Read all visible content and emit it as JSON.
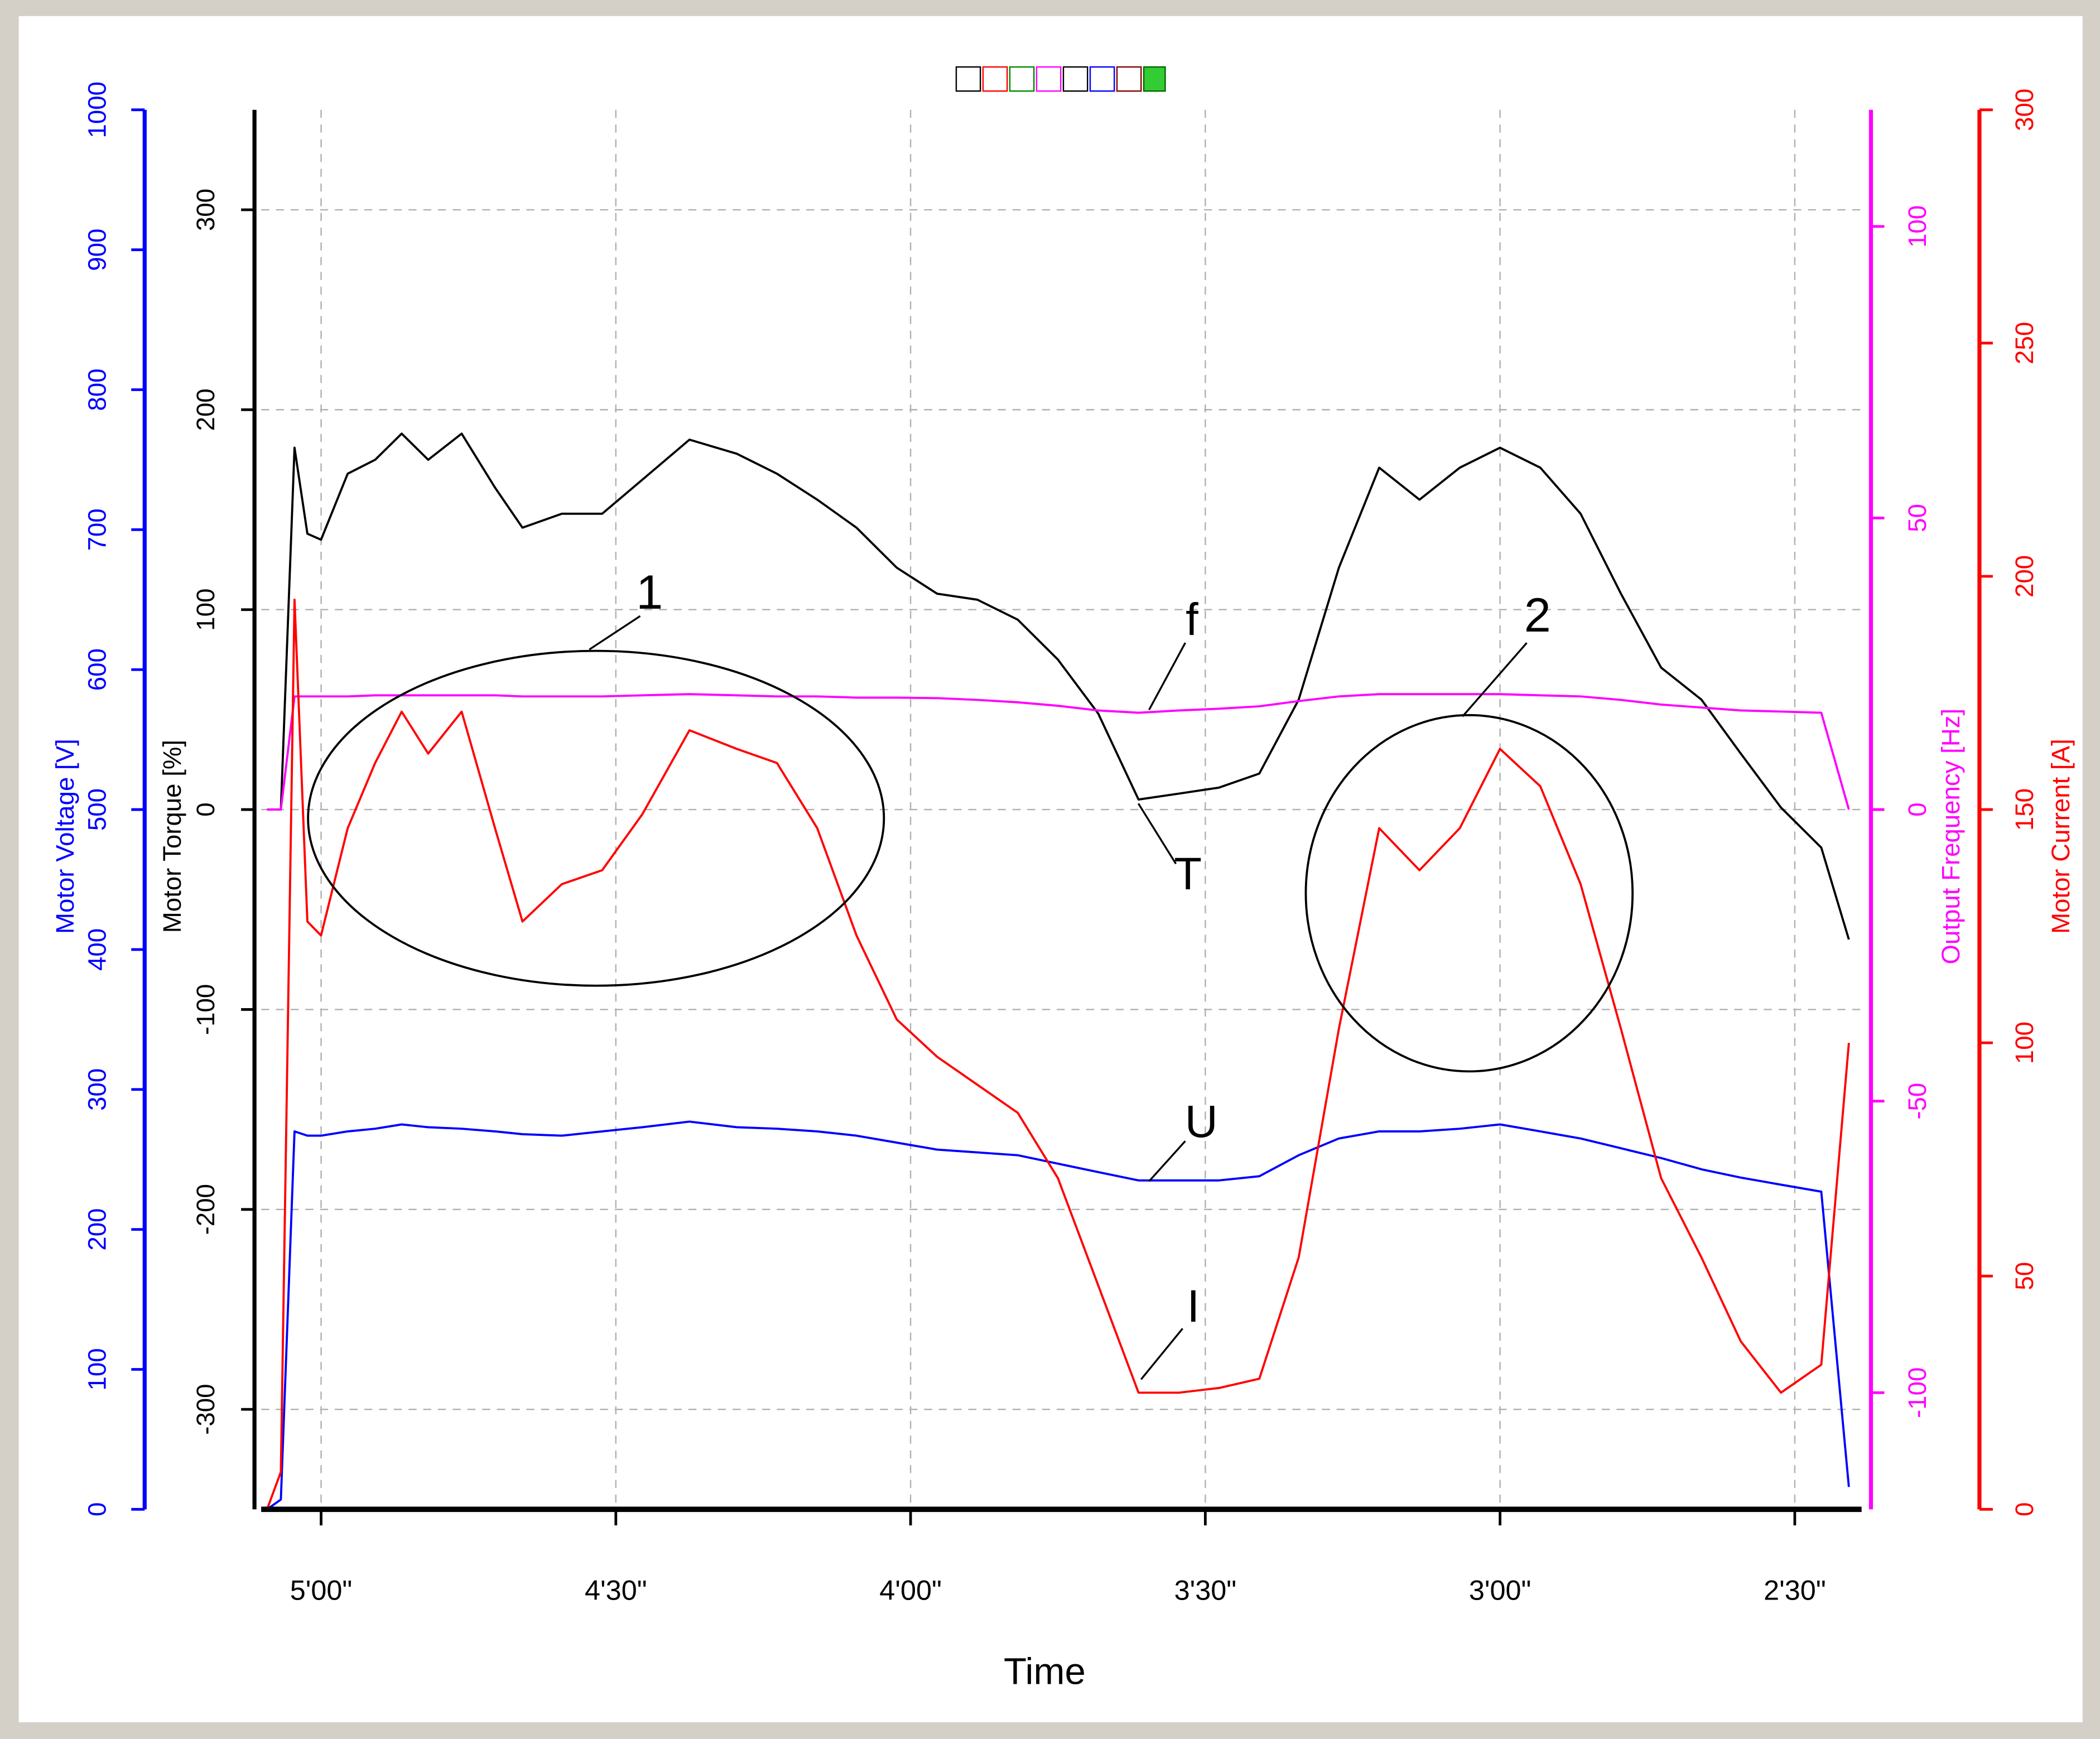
{
  "chart_data": {
    "type": "line",
    "xlabel": "Time",
    "xlim": [
      306.1,
      143.2
    ],
    "xticks": [
      {
        "value": 300,
        "label": "5'00\""
      },
      {
        "value": 270,
        "label": "4'30\""
      },
      {
        "value": 240,
        "label": "4'00\""
      },
      {
        "value": 210,
        "label": "3'30\""
      },
      {
        "value": 180,
        "label": "3'00\""
      },
      {
        "value": 150,
        "label": "2'30\""
      }
    ],
    "ylabel": "Motor Torque [%]",
    "ylim": [
      -350,
      350
    ],
    "yticks": [
      -300,
      -200,
      -100,
      0,
      100,
      200,
      300
    ],
    "y2label": "Output Frequency [Hz]",
    "y2lim": [
      -120,
      120
    ],
    "y2ticks": [
      -100,
      -50,
      0,
      50,
      100
    ],
    "y3label": "Motor Voltage [V]",
    "y3lim": [
      0,
      1000
    ],
    "y3ticks": [
      0,
      100,
      200,
      300,
      400,
      500,
      600,
      700,
      800,
      900,
      1000
    ],
    "y4label": "Motor Current [A]",
    "y4lim": [
      0,
      300
    ],
    "y4ticks": [
      0,
      50,
      100,
      150,
      200,
      250,
      300
    ],
    "grid": true,
    "x": [
      305.5,
      304.1,
      302.7,
      301.4,
      300,
      297.3,
      294.5,
      291.8,
      289.1,
      285.7,
      282.3,
      279.5,
      275.5,
      271.4,
      267.3,
      262.5,
      257.7,
      253.6,
      249.5,
      245.5,
      241.4,
      237.3,
      233.2,
      229.1,
      225,
      220.9,
      216.8,
      212.7,
      208.6,
      204.5,
      200.5,
      196.4,
      192.3,
      188.2,
      184.1,
      180,
      175.9,
      171.8,
      167.7,
      163.6,
      159.5,
      155.5,
      151.4,
      147.3,
      144.5
    ],
    "series": [
      {
        "name": "T",
        "color": "#000000",
        "axis": "y",
        "values": [
          0,
          0,
          181,
          138,
          135,
          168,
          175,
          188,
          175,
          188,
          161,
          141,
          148,
          148,
          165,
          185,
          178,
          168,
          155,
          141,
          121,
          108,
          105,
          95,
          75,
          48,
          5,
          8,
          11,
          18,
          55,
          121,
          171,
          155,
          171,
          181,
          171,
          148,
          108,
          71,
          55,
          28,
          1,
          -19,
          -65
        ]
      },
      {
        "name": "f",
        "color": "#ff00ff",
        "axis": "y2",
        "values": [
          0,
          0,
          19.4,
          19.4,
          19.4,
          19.4,
          19.6,
          19.6,
          19.6,
          19.6,
          19.6,
          19.4,
          19.4,
          19.4,
          19.6,
          19.8,
          19.6,
          19.4,
          19.4,
          19.2,
          19.2,
          19.1,
          18.8,
          18.4,
          17.8,
          17,
          16.6,
          17,
          17.3,
          17.7,
          18.6,
          19.4,
          19.8,
          19.8,
          19.8,
          19.8,
          19.6,
          19.4,
          18.8,
          18,
          17.5,
          17,
          16.8,
          16.6,
          0
        ]
      },
      {
        "name": "U",
        "color": "#0000ff",
        "axis": "y3",
        "values": [
          0,
          7,
          270,
          267,
          267,
          270,
          272,
          275,
          273,
          272,
          270,
          268,
          267,
          270,
          273,
          277,
          273,
          272,
          270,
          267,
          262,
          257,
          255,
          253,
          247,
          241,
          235,
          235,
          235,
          238,
          253,
          265,
          270,
          270,
          272,
          275,
          270,
          265,
          258,
          251,
          243,
          237,
          232,
          227,
          16
        ]
      },
      {
        "name": "I",
        "color": "#ff0000",
        "axis": "y4",
        "values": [
          0,
          8,
          195,
          126,
          123,
          146,
          160,
          171,
          162,
          171,
          146,
          126,
          134,
          137,
          149,
          167,
          163,
          160,
          146,
          123,
          105,
          97,
          91,
          85,
          71,
          48,
          25,
          25,
          26,
          28,
          54,
          103,
          146,
          137,
          146,
          163,
          155,
          134,
          103,
          71,
          54,
          36,
          25,
          31,
          100
        ]
      }
    ],
    "annotations": [
      "1",
      "2"
    ]
  }
}
